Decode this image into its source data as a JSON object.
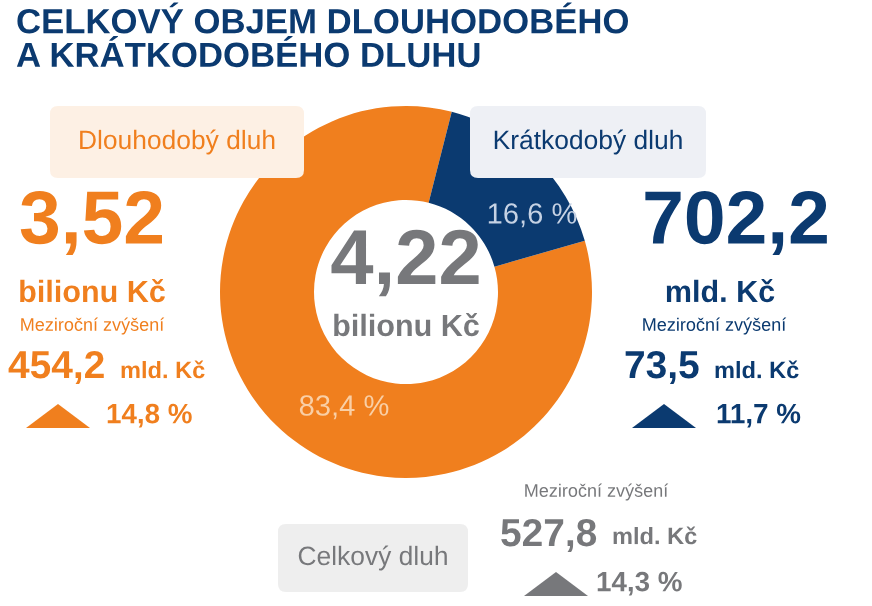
{
  "chart_data": {
    "type": "donut",
    "title": "CELKOVÝ OBJEM DLOUHODOBÉHO\nA KRÁTKODOBÉHO DLUHU",
    "categories": [
      "Dlouhodobý dluh",
      "Krátkodobý dluh"
    ],
    "values": [
      83.4,
      16.6
    ],
    "colors": [
      "#f07f1e",
      "#0b3a70"
    ],
    "value_labels": [
      "83,4 %",
      "16,6 %"
    ],
    "annotations": [
      "3,52",
      "bilionu Kč",
      "Meziroční zvýšení",
      "454,2",
      "mld. Kč",
      "14,8 %",
      "702,2",
      "mld. Kč",
      "Meziroční zvýšení",
      "73,5",
      "mld. Kč",
      "11,7 %",
      "4,22",
      "bilionu Kč",
      "Meziroční zvýšení",
      "527,8",
      "mld. Kč",
      "14,3 %",
      "Celkový dluh"
    ]
  }
}
